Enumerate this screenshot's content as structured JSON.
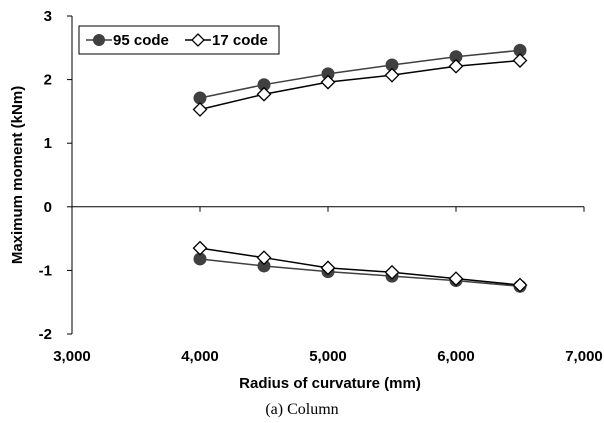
{
  "caption": "(a)  Column",
  "chart_data": {
    "type": "line",
    "xlabel": "Radius of curvature (mm)",
    "ylabel": "Maximum moment (kNm)",
    "xlim": [
      3000,
      7000
    ],
    "ylim": [
      -2,
      3
    ],
    "xticks": [
      "3,000",
      "4,000",
      "5,000",
      "6,000",
      "7,000"
    ],
    "yticks": [
      "-2",
      "-1",
      "0",
      "1",
      "2",
      "3"
    ],
    "grid": false,
    "legend_position": "top-left",
    "series": [
      {
        "name": "95 code",
        "marker": "filled-circle",
        "color": "#404040",
        "segments": [
          {
            "x": [
              4000,
              4500,
              5000,
              5500,
              6000,
              6500
            ],
            "y": [
              1.71,
              1.92,
              2.09,
              2.23,
              2.36,
              2.46
            ]
          },
          {
            "x": [
              4000,
              4500,
              5000,
              5500,
              6000,
              6500
            ],
            "y": [
              -0.82,
              -0.93,
              -1.02,
              -1.09,
              -1.16,
              -1.25
            ]
          }
        ]
      },
      {
        "name": "17 code",
        "marker": "open-diamond",
        "color": "#000000",
        "segments": [
          {
            "x": [
              4000,
              4500,
              5000,
              5500,
              6000,
              6500
            ],
            "y": [
              1.53,
              1.77,
              1.96,
              2.07,
              2.21,
              2.3
            ]
          },
          {
            "x": [
              4000,
              4500,
              5000,
              5500,
              6000,
              6500
            ],
            "y": [
              -0.65,
              -0.8,
              -0.96,
              -1.03,
              -1.13,
              -1.23
            ]
          }
        ]
      }
    ]
  }
}
